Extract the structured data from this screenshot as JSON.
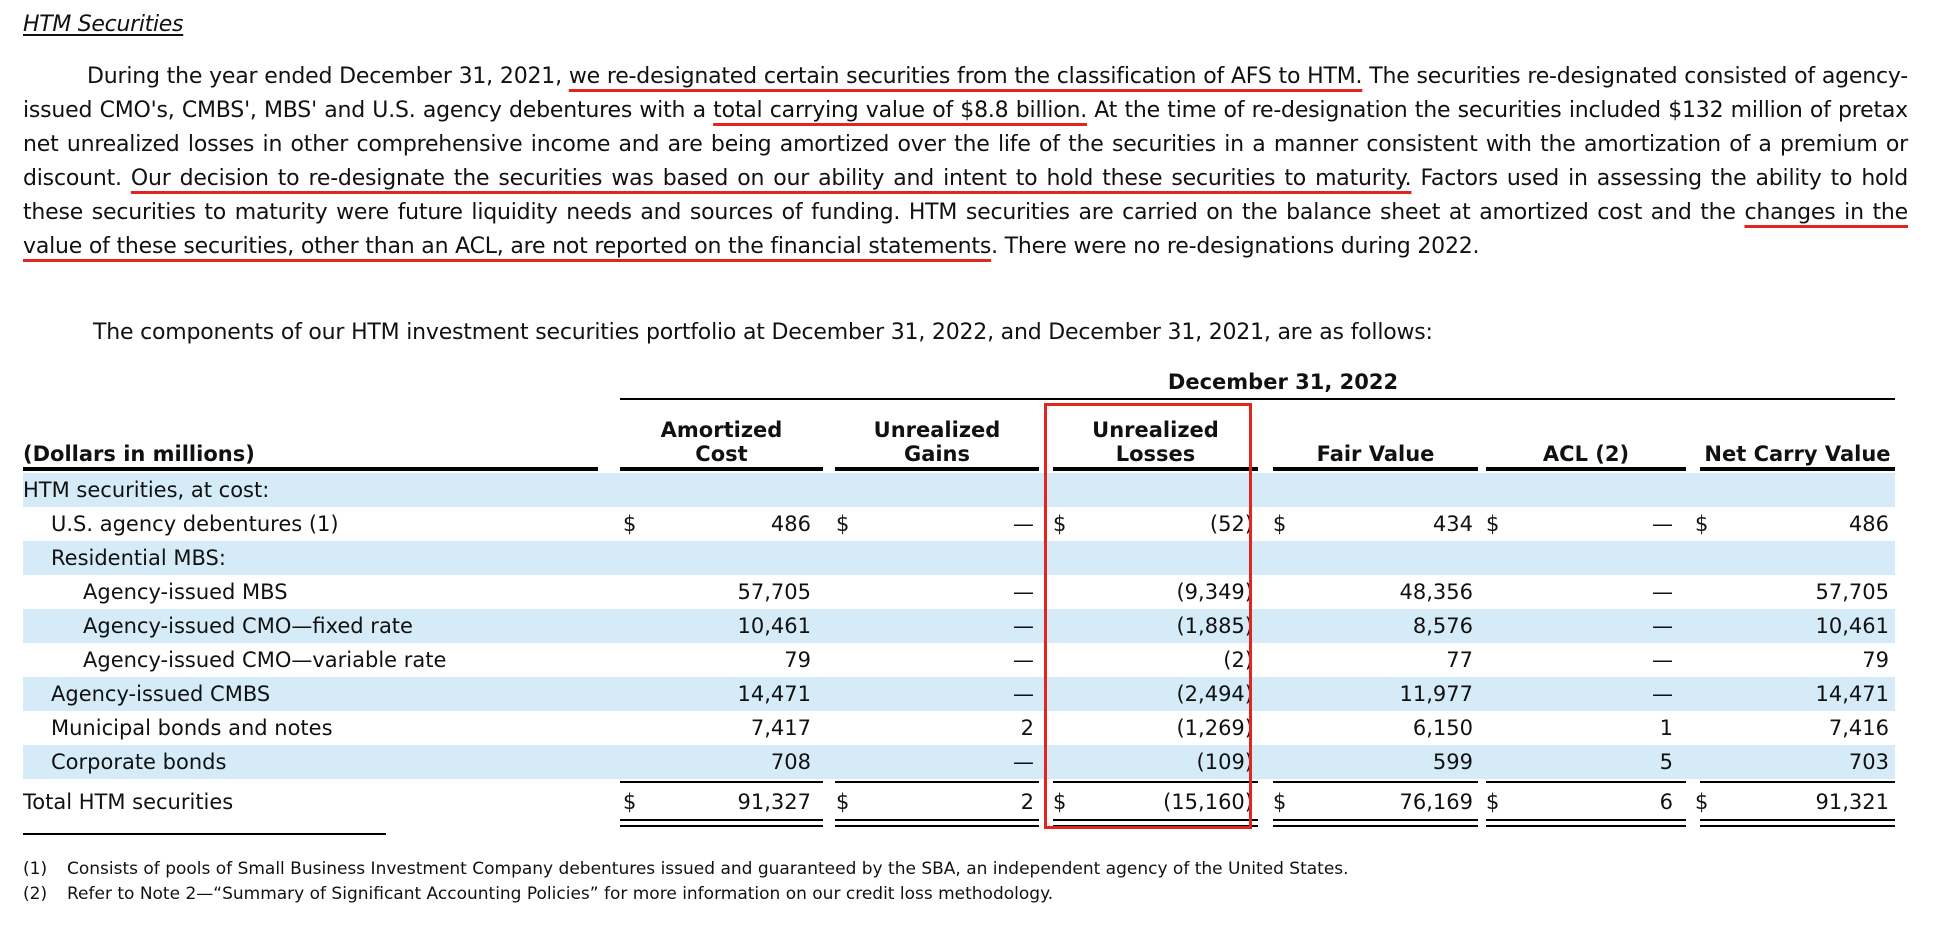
{
  "heading": "HTM Securities",
  "para1": {
    "segments": [
      {
        "text": "During the year ended December 31, 2021, ",
        "hl": false
      },
      {
        "text": "we re-designated certain securities from the classification of AFS to HTM.",
        "hl": true
      },
      {
        "text": " The securities re-designated consisted of agency-issued CMO's, CMBS', MBS' and U.S. agency debentures with a ",
        "hl": false
      },
      {
        "text": "total carrying value of $8.8 billion.",
        "hl": true
      },
      {
        "text": " At the time of re-designation the securities included $132 million of pretax net unrealized losses in other comprehensive income and are being amortized over the life of the securities in a manner consistent with the amortization of a premium or discount. ",
        "hl": false
      },
      {
        "text": "Our decision to re-designate the securities was based on our ability and intent to hold these securities to maturity.",
        "hl": true
      },
      {
        "text": " Factors used in assessing the ability to hold these securities to maturity were future liquidity needs and sources of funding. HTM securities are carried on the balance sheet at amortized cost and the ",
        "hl": false
      },
      {
        "text": "changes in the value of these securities, other than an ACL, are not reported on the financial statements",
        "hl": true
      },
      {
        "text": ". There were no re-designations during 2022.",
        "hl": false
      }
    ]
  },
  "para2": "The components of our HTM investment securities portfolio at December 31, 2022, and December 31, 2021, are as follows:",
  "table": {
    "period": "December 31, 2022",
    "label_header": "(Dollars in millions)",
    "columns": [
      "Amortized\nCost",
      "Unrealized\nGains",
      "Unrealized\nLosses",
      "Fair Value",
      "ACL (2)",
      "Net Carry Value"
    ],
    "rows": [
      {
        "label": "HTM securities, at cost:",
        "indent": 0,
        "shade": true,
        "dollar": false,
        "values": [
          "",
          "",
          "",
          "",
          "",
          ""
        ]
      },
      {
        "label": "U.S. agency debentures (1)",
        "indent": 1,
        "shade": false,
        "dollar": true,
        "values": [
          "486",
          "—",
          "(52)",
          "434",
          "—",
          "486"
        ]
      },
      {
        "label": "Residential MBS:",
        "indent": 1,
        "shade": true,
        "dollar": false,
        "values": [
          "",
          "",
          "",
          "",
          "",
          ""
        ]
      },
      {
        "label": "Agency-issued MBS",
        "indent": 2,
        "shade": false,
        "dollar": false,
        "values": [
          "57,705",
          "—",
          "(9,349)",
          "48,356",
          "—",
          "57,705"
        ]
      },
      {
        "label": "Agency-issued CMO—fixed rate",
        "indent": 2,
        "shade": true,
        "dollar": false,
        "values": [
          "10,461",
          "—",
          "(1,885)",
          "8,576",
          "—",
          "10,461"
        ]
      },
      {
        "label": "Agency-issued CMO—variable rate",
        "indent": 2,
        "shade": false,
        "dollar": false,
        "values": [
          "79",
          "—",
          "(2)",
          "77",
          "—",
          "79"
        ]
      },
      {
        "label": "Agency-issued CMBS",
        "indent": 1,
        "shade": true,
        "dollar": false,
        "values": [
          "14,471",
          "—",
          "(2,494)",
          "11,977",
          "—",
          "14,471"
        ]
      },
      {
        "label": "Municipal bonds and notes",
        "indent": 1,
        "shade": false,
        "dollar": false,
        "values": [
          "7,417",
          "2",
          "(1,269)",
          "6,150",
          "1",
          "7,416"
        ]
      },
      {
        "label": "Corporate bonds",
        "indent": 1,
        "shade": true,
        "dollar": false,
        "values": [
          "708",
          "—",
          "(109)",
          "599",
          "5",
          "703"
        ]
      },
      {
        "label": "Total HTM securities",
        "indent": 0,
        "shade": false,
        "dollar": true,
        "values": [
          "91,327",
          "2",
          "(15,160)",
          "76,169",
          "6",
          "91,321"
        ]
      }
    ],
    "dollar_sign": "$"
  },
  "footnotes": [
    {
      "num": "(1)",
      "text": "Consists of pools of Small Business Investment Company debentures issued and guaranteed by the SBA, an independent agency of the United States."
    },
    {
      "num": "(2)",
      "text": "Refer to Note 2—“Summary of Significant Accounting Policies” for more information on our credit loss methodology."
    }
  ],
  "colors": {
    "highlight": "#e0261d",
    "shade": "#d5ecf8"
  }
}
